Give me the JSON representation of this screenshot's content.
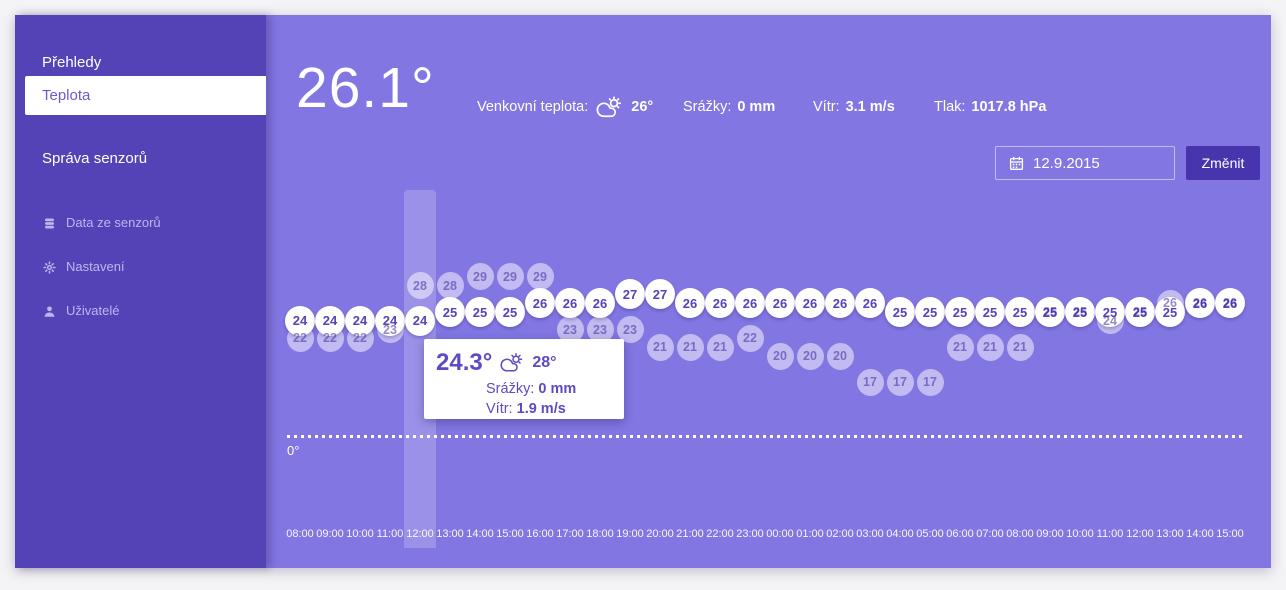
{
  "colors": {
    "page_bg": "#f4f3f5",
    "sidebar_bg": "#5343b6",
    "main_bg": "#8276e3",
    "button_bg": "#4635ac",
    "bubble_bg": "#ffffff",
    "bubble_text": "#5444bb",
    "active_item_text": "#6a5bd0"
  },
  "sidebar": {
    "items": [
      {
        "label": "Přehledy",
        "active": false
      },
      {
        "label": "Teplota",
        "active": true
      },
      {
        "label": "Správa senzorů",
        "active": false
      }
    ],
    "secondary_items": [
      {
        "icon": "database-icon",
        "label": "Data ze senzorů"
      },
      {
        "icon": "gear-icon",
        "label": "Nastavení"
      },
      {
        "icon": "user-icon",
        "label": "Uživatelé"
      }
    ]
  },
  "header": {
    "current_temp": "26.1°",
    "outdoor_label": "Venkovní teplota:",
    "outdoor_temp": "26°",
    "precip_label": "Srážky:",
    "precip_value": "0 mm",
    "wind_label": "Vítr:",
    "wind_value": "3.1 m/s",
    "pressure_label": "Tlak:",
    "pressure_value": "1017.8 hPa"
  },
  "date_controls": {
    "date_value": "12.9.2015",
    "change_button": "Změnit"
  },
  "chart_data": {
    "type": "scatter",
    "x": [
      "08:00",
      "09:00",
      "10:00",
      "11:00",
      "12:00",
      "13:00",
      "14:00",
      "15:00",
      "16:00",
      "17:00",
      "18:00",
      "19:00",
      "20:00",
      "21:00",
      "22:00",
      "23:00",
      "00:00",
      "01:00",
      "02:00",
      "03:00",
      "04:00",
      "05:00",
      "06:00",
      "07:00",
      "08:00",
      "09:00",
      "10:00",
      "11:00",
      "12:00",
      "13:00",
      "14:00",
      "15:00"
    ],
    "series": [
      {
        "name": "sensor-temperature",
        "style": "solid-white-bubbles",
        "values": [
          24,
          24,
          24,
          24,
          24,
          25,
          25,
          25,
          26,
          26,
          26,
          27,
          27,
          26,
          26,
          26,
          26,
          26,
          26,
          26,
          25,
          25,
          25,
          25,
          25,
          25,
          25,
          25,
          25,
          25,
          26,
          26
        ]
      },
      {
        "name": "outdoor-temperature",
        "style": "light-translucent-bubbles",
        "values": [
          22,
          22,
          22,
          23,
          28,
          28,
          29,
          29,
          29,
          23,
          23,
          23,
          21,
          21,
          21,
          22,
          20,
          20,
          20,
          17,
          17,
          17,
          21,
          21,
          21,
          25,
          25,
          24,
          25,
          26,
          26,
          26
        ]
      }
    ],
    "unit": "°",
    "zero_line_label": "0°",
    "grid": "off",
    "legend": "none",
    "highlighted_index": 4,
    "highlighted_x": "12:00",
    "tooltip": {
      "temp": "24.3°",
      "outdoor_temp": "28°",
      "precip_label": "Srážky:",
      "precip_value": "0 mm",
      "wind_label": "Vítr:",
      "wind_value": "1.9 m/s"
    }
  }
}
